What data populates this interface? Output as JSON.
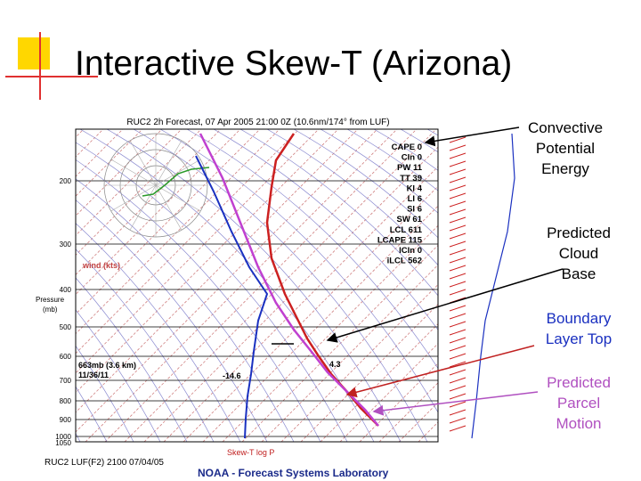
{
  "title": "Interactive Skew-T (Arizona)",
  "annotations": [
    {
      "lines": [
        "Convective",
        "Potential",
        "Energy"
      ]
    },
    {
      "lines": [
        "Predicted",
        "Cloud",
        "Base"
      ]
    },
    {
      "lines": [
        "Boundary",
        "Layer Top"
      ]
    },
    {
      "lines": [
        "Predicted",
        "Parcel",
        "Motion"
      ]
    }
  ],
  "skewt": {
    "header": "RUC2 2h Forecast, 07 Apr 2005 21:00 0Z (10.6nm/174° from LUF)",
    "indices": [
      "CAPE 0",
      "CIn 0",
      "PW 11",
      "TT 39",
      "KI 4",
      "LI 6",
      "SI 6",
      "SW 61",
      "LCL 611",
      "LCAPE 115",
      "lCIn 0",
      "iLCL 562"
    ],
    "pressures": [
      "200",
      "300",
      "400",
      "500",
      "600",
      "700",
      "800",
      "900",
      "1000",
      "1050"
    ],
    "pressure_label": [
      "Pressure",
      "(mb)"
    ],
    "wind_label": "wind (kts)",
    "parcel_info": [
      "663mb (3.6 km)",
      "11/36/11"
    ],
    "temp_labels": [
      "4.3",
      "-14.6"
    ],
    "legend": "Skew-T log P",
    "footer_left": "RUC2 LUF(F2) 2100 07/04/05",
    "footer": "NOAA - Forecast Systems Laboratory"
  }
}
